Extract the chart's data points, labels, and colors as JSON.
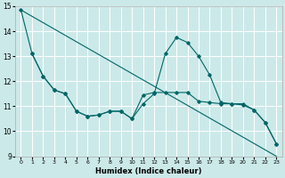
{
  "xlabel": "Humidex (Indice chaleur)",
  "bg_color": "#cce9e9",
  "grid_color": "#ffffff",
  "line_color": "#006666",
  "xlim": [
    -0.5,
    23.5
  ],
  "ylim": [
    9,
    15
  ],
  "yticks": [
    9,
    10,
    11,
    12,
    13,
    14,
    15
  ],
  "xticks": [
    0,
    1,
    2,
    3,
    4,
    5,
    6,
    7,
    8,
    9,
    10,
    11,
    12,
    13,
    14,
    15,
    16,
    17,
    18,
    19,
    20,
    21,
    22,
    23
  ],
  "line1": {
    "x": [
      0,
      1,
      2,
      3,
      4,
      5,
      6,
      7,
      8,
      9,
      10,
      11,
      12,
      13,
      14,
      15,
      16,
      17,
      18,
      19,
      20,
      21,
      22,
      23
    ],
    "y": [
      14.85,
      13.1,
      12.2,
      11.65,
      11.5,
      10.8,
      10.6,
      10.65,
      10.8,
      10.8,
      10.5,
      11.1,
      11.5,
      13.1,
      13.75,
      13.55,
      13.0,
      12.25,
      11.15,
      11.1,
      11.1,
      10.85,
      10.35,
      9.5
    ]
  },
  "line2": {
    "x": [
      1,
      2,
      3,
      4,
      5,
      6,
      7,
      8,
      9,
      10,
      11,
      12,
      13,
      14,
      15,
      16,
      17,
      18,
      19,
      20,
      21,
      22,
      23
    ],
    "y": [
      13.1,
      12.2,
      11.65,
      11.5,
      10.8,
      10.6,
      10.65,
      10.8,
      10.8,
      10.5,
      11.45,
      11.55,
      11.55,
      11.55,
      11.55,
      11.2,
      11.15,
      11.1,
      11.1,
      11.05,
      10.85,
      10.35,
      9.5
    ]
  },
  "line3": {
    "x": [
      0,
      23
    ],
    "y": [
      14.85,
      9.0
    ]
  }
}
